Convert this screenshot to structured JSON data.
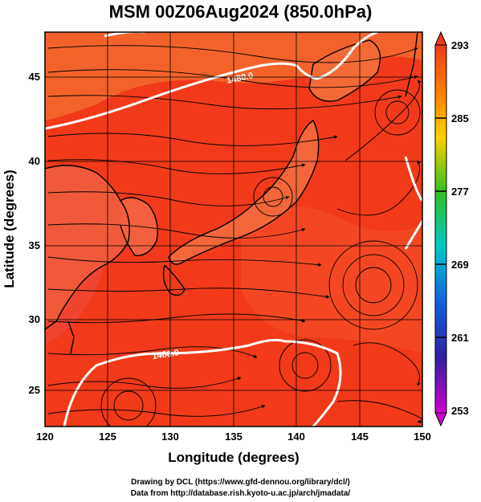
{
  "title": "MSM 00Z06Aug2024 (850.0hPa)",
  "xlabel": "Longitude (degrees)",
  "ylabel": "Latitude  (degrees)",
  "x_ticks": [
    "120",
    "125",
    "130",
    "135",
    "140",
    "145",
    "150"
  ],
  "y_ticks": [
    "25",
    "30",
    "35",
    "40",
    "45"
  ],
  "colorbar_ticks": [
    "293",
    "285",
    "277",
    "269",
    "261",
    "253"
  ],
  "contour_labels": [
    "1480.0",
    "1480.0"
  ],
  "credit_line1": "Drawing by DCL (https://www.gfd-dennou.org/library/dcl/)",
  "credit_line2": "Data from http://database.rish.kyoto-u.ac.jp/arch/jmadata/",
  "map": {
    "lon_range": [
      120,
      150
    ],
    "lat_range": [
      22.5,
      47.5
    ],
    "variable": "temperature (K) shaded, geopotential height contours, wind streamlines",
    "colorbar_range": [
      253,
      293
    ]
  },
  "colors": {
    "field_base": "#f03a1a",
    "field_warm": "#ff6a2a",
    "land": "#f0602e",
    "contour": "#ffffff",
    "coast": "#000000"
  }
}
